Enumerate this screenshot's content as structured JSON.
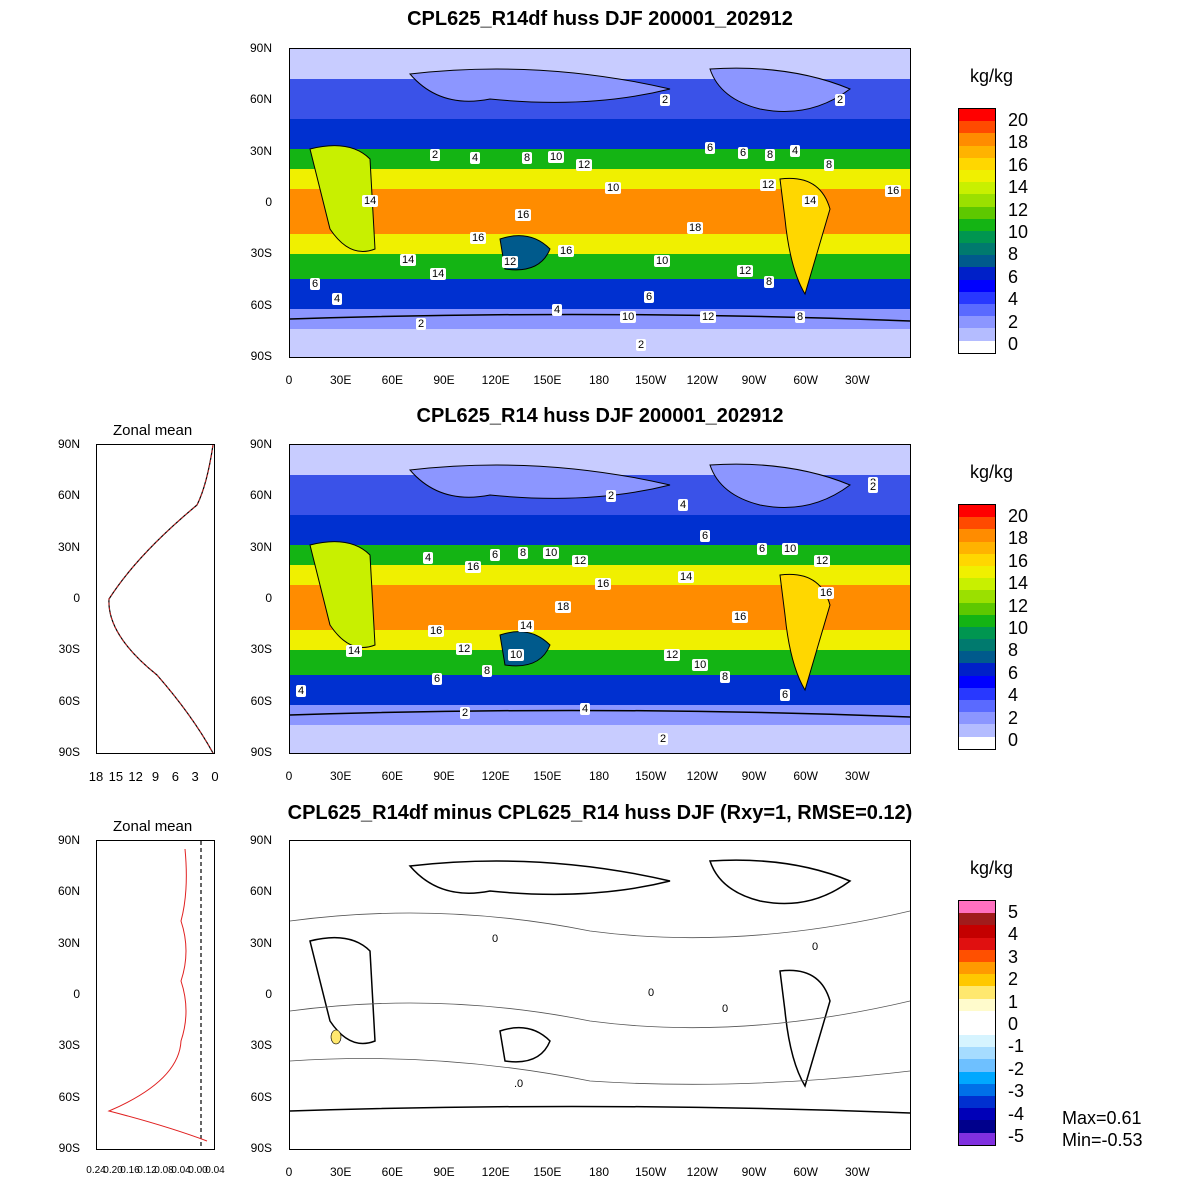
{
  "panels": {
    "top": {
      "title": "CPL625_R14df huss DJF 200001_202912",
      "unit": "kg/kg"
    },
    "middle": {
      "title": "CPL625_R14 huss DJF 200001_202912",
      "unit": "kg/kg",
      "zonal_title": "Zonal mean"
    },
    "bottom": {
      "title": "CPL625_R14df minus CPL625_R14 huss DJF (Rxy=1, RMSE=0.12)",
      "unit": "kg/kg",
      "zonal_title": "Zonal mean",
      "max": "Max=0.61",
      "min": "Min=-0.53"
    }
  },
  "axes": {
    "lat_labels": [
      "90N",
      "60N",
      "30N",
      "0",
      "30S",
      "60S",
      "90S"
    ],
    "lon_labels": [
      "0",
      "30E",
      "60E",
      "90E",
      "120E",
      "150E",
      "180",
      "150W",
      "120W",
      "90W",
      "60W",
      "30W"
    ],
    "zonal_mean_x_labels": [
      "18",
      "15",
      "12",
      "9",
      "6",
      "3",
      "0"
    ],
    "zonal_diff_x_labels": [
      "0.24",
      "0.20",
      "0.16",
      "0.12",
      "0.08",
      "0.04",
      "0.00",
      "0.04"
    ]
  },
  "colorbars": {
    "huss": {
      "labels": [
        "20",
        "18",
        "16",
        "14",
        "12",
        "10",
        "8",
        "6",
        "4",
        "2",
        "0"
      ],
      "colors": [
        "#ff0000",
        "#ff4a00",
        "#ff8c00",
        "#ffb300",
        "#ffd700",
        "#f0f000",
        "#c8f000",
        "#9be000",
        "#5ec800",
        "#14b414",
        "#009650",
        "#007a6e",
        "#005a8c",
        "#0020c8",
        "#0000ff",
        "#2838ff",
        "#5a6aff",
        "#8c96ff",
        "#b4bcff",
        "#ffffff"
      ]
    },
    "diff": {
      "labels": [
        "5",
        "4",
        "3",
        "2",
        "1",
        "0",
        "-1",
        "-2",
        "-3",
        "-4",
        "-5"
      ],
      "colors": [
        "#ff70c0",
        "#a01c1c",
        "#c40000",
        "#e01010",
        "#ff5000",
        "#ff9a00",
        "#ffc800",
        "#ffe86e",
        "#fffbcc",
        "#ffffff",
        "#ffffff",
        "#d6f4ff",
        "#a6dcff",
        "#6ec0ff",
        "#00a8ff",
        "#0070e8",
        "#0030d0",
        "#0000b8",
        "#00008c",
        "#8030e0"
      ]
    }
  },
  "contour_labels": {
    "top": [
      "2",
      "2",
      "2",
      "4",
      "6",
      "8",
      "8",
      "10",
      "12",
      "6",
      "4",
      "8",
      "10",
      "12",
      "16",
      "14",
      "14",
      "16",
      "18",
      "16",
      "16",
      "14",
      "12",
      "10",
      "14",
      "12",
      "8",
      "6",
      "4",
      "4",
      "6",
      "10",
      "12",
      "8",
      "2",
      "2"
    ],
    "middle": [
      "2",
      "4",
      "2",
      "6",
      "8",
      "10",
      "12",
      "16",
      "14",
      "4",
      "6",
      "6",
      "10",
      "12",
      "16",
      "16",
      "18",
      "14",
      "16",
      "12",
      "10",
      "8",
      "6",
      "4",
      "2",
      "4",
      "12",
      "10",
      "8",
      "16",
      "14",
      "6",
      "2",
      "2"
    ],
    "bottom": [
      "0",
      "0",
      "0",
      "0",
      ".0"
    ]
  }
}
